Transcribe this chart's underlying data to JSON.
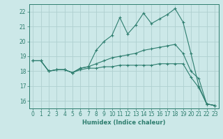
{
  "xlabel": "Humidex (Indice chaleur)",
  "ylabel": "",
  "bg_color": "#cce8e8",
  "grid_color": "#afd0d0",
  "line_color": "#2d7d6e",
  "xlim": [
    -0.5,
    23.5
  ],
  "ylim": [
    15.5,
    22.5
  ],
  "xticks": [
    0,
    1,
    2,
    3,
    4,
    5,
    6,
    7,
    8,
    9,
    10,
    11,
    12,
    13,
    14,
    15,
    16,
    17,
    18,
    19,
    20,
    21,
    22,
    23
  ],
  "yticks": [
    16,
    17,
    18,
    19,
    20,
    21,
    22
  ],
  "lines": [
    {
      "x": [
        0,
        1,
        2,
        3,
        4,
        5,
        6,
        7,
        8,
        9,
        10,
        11,
        12,
        13,
        14,
        15,
        16,
        17,
        18,
        19,
        20,
        21,
        22,
        23
      ],
      "y": [
        18.7,
        18.7,
        18.0,
        18.1,
        18.1,
        17.9,
        18.2,
        18.3,
        19.4,
        20.0,
        20.4,
        21.6,
        20.5,
        21.1,
        21.9,
        21.2,
        21.5,
        21.8,
        22.2,
        21.3,
        19.2,
        17.0,
        15.8,
        15.7
      ]
    },
    {
      "x": [
        0,
        1,
        2,
        3,
        4,
        5,
        6,
        7,
        8,
        9,
        10,
        11,
        12,
        13,
        14,
        15,
        16,
        17,
        18,
        19,
        20,
        21,
        22,
        23
      ],
      "y": [
        18.7,
        18.7,
        18.0,
        18.1,
        18.1,
        17.9,
        18.2,
        18.3,
        18.5,
        18.7,
        18.9,
        19.0,
        19.1,
        19.2,
        19.4,
        19.5,
        19.6,
        19.7,
        19.8,
        19.2,
        18.0,
        17.5,
        15.8,
        15.7
      ]
    },
    {
      "x": [
        0,
        1,
        2,
        3,
        4,
        5,
        6,
        7,
        8,
        9,
        10,
        11,
        12,
        13,
        14,
        15,
        16,
        17,
        18,
        19,
        20,
        21,
        22,
        23
      ],
      "y": [
        18.7,
        18.7,
        18.0,
        18.1,
        18.1,
        17.9,
        18.1,
        18.2,
        18.2,
        18.3,
        18.3,
        18.4,
        18.4,
        18.4,
        18.4,
        18.4,
        18.5,
        18.5,
        18.5,
        18.5,
        17.6,
        16.9,
        15.8,
        15.7
      ]
    }
  ]
}
